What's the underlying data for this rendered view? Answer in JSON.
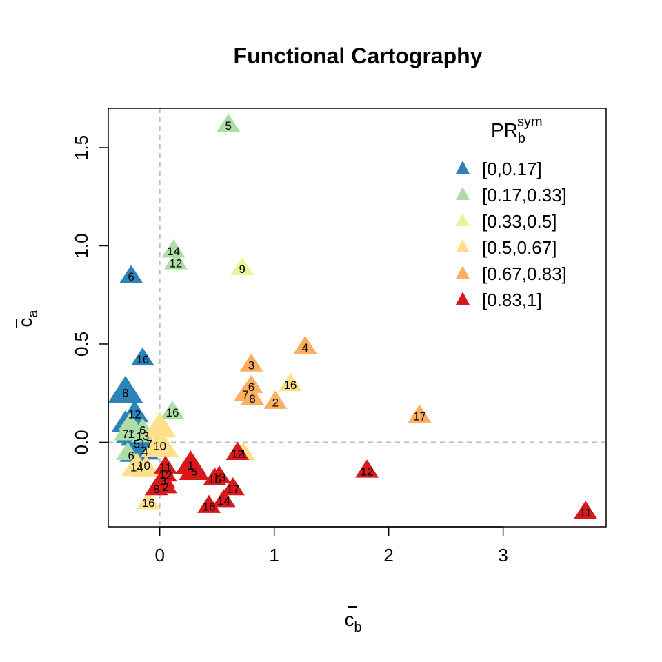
{
  "chart_data": {
    "type": "scatter",
    "title": "Functional Cartography",
    "xlabel": "c",
    "xlabel_sub": "b",
    "ylabel": "c",
    "ylabel_sub": "a",
    "xlim": [
      -0.45,
      3.9
    ],
    "ylim": [
      -0.43,
      1.7
    ],
    "x_ticks": [
      0,
      1,
      2,
      3
    ],
    "y_ticks": [
      0.0,
      0.5,
      1.0,
      1.5
    ],
    "x_tick_labels": [
      "0",
      "1",
      "2",
      "3"
    ],
    "y_tick_labels": [
      "0.0",
      "0.5",
      "1.0",
      "1.5"
    ],
    "reference_lines": {
      "x": 0,
      "y": 0,
      "style": "dashed",
      "color": "#bdbdbd"
    },
    "grid": false,
    "legend": {
      "position": "top-right",
      "title": "PR",
      "title_sub": "b",
      "title_sup": "sym",
      "marker": "triangle"
    },
    "series": [
      {
        "name": "[0,0.17]",
        "color": "#2b83ba",
        "points": [
          {
            "x": -0.25,
            "y": 0.85,
            "label": "6",
            "size": 1.0
          },
          {
            "x": -0.15,
            "y": 0.43,
            "label": "16",
            "size": 1.0
          },
          {
            "x": -0.3,
            "y": 0.26,
            "label": "8",
            "size": 1.5
          },
          {
            "x": -0.22,
            "y": 0.15,
            "label": "12",
            "size": 1.2
          },
          {
            "x": -0.3,
            "y": 0.1,
            "label": "",
            "size": 1.2
          },
          {
            "x": -0.25,
            "y": 0.05,
            "label": "1",
            "size": 1.3
          },
          {
            "x": -0.18,
            "y": 0.05,
            "label": "",
            "size": 1.2
          },
          {
            "x": -0.22,
            "y": 0.03,
            "label": "",
            "size": 1.2
          },
          {
            "x": -0.2,
            "y": 0.0,
            "label": "5",
            "size": 1.2
          },
          {
            "x": -0.12,
            "y": 0.0,
            "label": "17",
            "size": 1.2
          },
          {
            "x": -0.13,
            "y": -0.04,
            "label": "4",
            "size": 1.2
          },
          {
            "x": -0.25,
            "y": -0.06,
            "label": "6",
            "size": 1.0
          },
          {
            "x": -0.14,
            "y": -0.11,
            "label": "10",
            "size": 1.1
          }
        ]
      },
      {
        "name": "[0.17,0.33]",
        "color": "#abdda4",
        "points": [
          {
            "x": 0.6,
            "y": 1.62,
            "label": "5",
            "size": 1.0
          },
          {
            "x": 0.12,
            "y": 0.98,
            "label": "14",
            "size": 1.0
          },
          {
            "x": 0.14,
            "y": 0.92,
            "label": "12",
            "size": 1.0
          },
          {
            "x": 0.11,
            "y": 0.16,
            "label": "16",
            "size": 1.0
          },
          {
            "x": -0.26,
            "y": 0.1,
            "label": "",
            "size": 1.0
          },
          {
            "x": -0.15,
            "y": 0.07,
            "label": "6",
            "size": 1.0
          },
          {
            "x": -0.3,
            "y": 0.05,
            "label": "7",
            "size": 1.0
          },
          {
            "x": -0.15,
            "y": 0.04,
            "label": "13",
            "size": 1.0
          },
          {
            "x": -0.28,
            "y": -0.05,
            "label": "",
            "size": 1.0
          }
        ]
      },
      {
        "name": "[0.33,0.5]",
        "color": "#e6f598",
        "points": [
          {
            "x": 0.72,
            "y": 0.89,
            "label": "9",
            "size": 1.0
          }
        ]
      },
      {
        "name": "[0.5,0.67]",
        "color": "#fee08b",
        "points": [
          {
            "x": 1.14,
            "y": 0.3,
            "label": "16",
            "size": 1.0
          },
          {
            "x": 0.0,
            "y": 0.08,
            "label": "",
            "size": 1.4
          },
          {
            "x": 0.0,
            "y": -0.01,
            "label": "10",
            "size": 1.6
          },
          {
            "x": 0.73,
            "y": -0.05,
            "label": "1",
            "size": 1.0
          },
          {
            "x": -0.2,
            "y": -0.12,
            "label": "14",
            "size": 1.3
          },
          {
            "x": -0.12,
            "y": -0.13,
            "label": "",
            "size": 1.2
          },
          {
            "x": -0.1,
            "y": -0.3,
            "label": "16",
            "size": 1.0
          }
        ]
      },
      {
        "name": "[0.67,0.83]",
        "color": "#fdae61",
        "points": [
          {
            "x": 1.27,
            "y": 0.49,
            "label": "4",
            "size": 1.0
          },
          {
            "x": 0.8,
            "y": 0.4,
            "label": "3",
            "size": 1.0
          },
          {
            "x": 0.8,
            "y": 0.29,
            "label": "6",
            "size": 1.0
          },
          {
            "x": 0.75,
            "y": 0.25,
            "label": "7",
            "size": 1.0
          },
          {
            "x": 0.81,
            "y": 0.23,
            "label": "8",
            "size": 1.0
          },
          {
            "x": 1.01,
            "y": 0.21,
            "label": "2",
            "size": 1.0
          },
          {
            "x": 2.27,
            "y": 0.14,
            "label": "17",
            "size": 1.0
          }
        ]
      },
      {
        "name": "[0.83,1]",
        "color": "#d7191c",
        "points": [
          {
            "x": 0.27,
            "y": -0.11,
            "label": "1",
            "size": 1.3
          },
          {
            "x": 0.3,
            "y": -0.14,
            "label": "5",
            "size": 1.3
          },
          {
            "x": 0.68,
            "y": -0.05,
            "label": "12",
            "size": 1.0
          },
          {
            "x": 0.05,
            "y": -0.12,
            "label": "11",
            "size": 1.0
          },
          {
            "x": 0.05,
            "y": -0.16,
            "label": "12",
            "size": 1.0
          },
          {
            "x": 0.03,
            "y": -0.19,
            "label": "3",
            "size": 1.0
          },
          {
            "x": 0.05,
            "y": -0.22,
            "label": "2",
            "size": 1.0
          },
          {
            "x": -0.03,
            "y": -0.23,
            "label": "8",
            "size": 1.0
          },
          {
            "x": 0.52,
            "y": -0.17,
            "label": "13",
            "size": 1.0
          },
          {
            "x": 0.48,
            "y": -0.18,
            "label": "15",
            "size": 1.0
          },
          {
            "x": 0.64,
            "y": -0.23,
            "label": "17",
            "size": 1.0
          },
          {
            "x": 0.56,
            "y": -0.29,
            "label": "14",
            "size": 1.0
          },
          {
            "x": 0.43,
            "y": -0.32,
            "label": "16",
            "size": 1.0
          },
          {
            "x": 1.81,
            "y": -0.14,
            "label": "12",
            "size": 1.0
          },
          {
            "x": 3.72,
            "y": -0.35,
            "label": "11",
            "size": 1.0
          }
        ]
      }
    ]
  }
}
